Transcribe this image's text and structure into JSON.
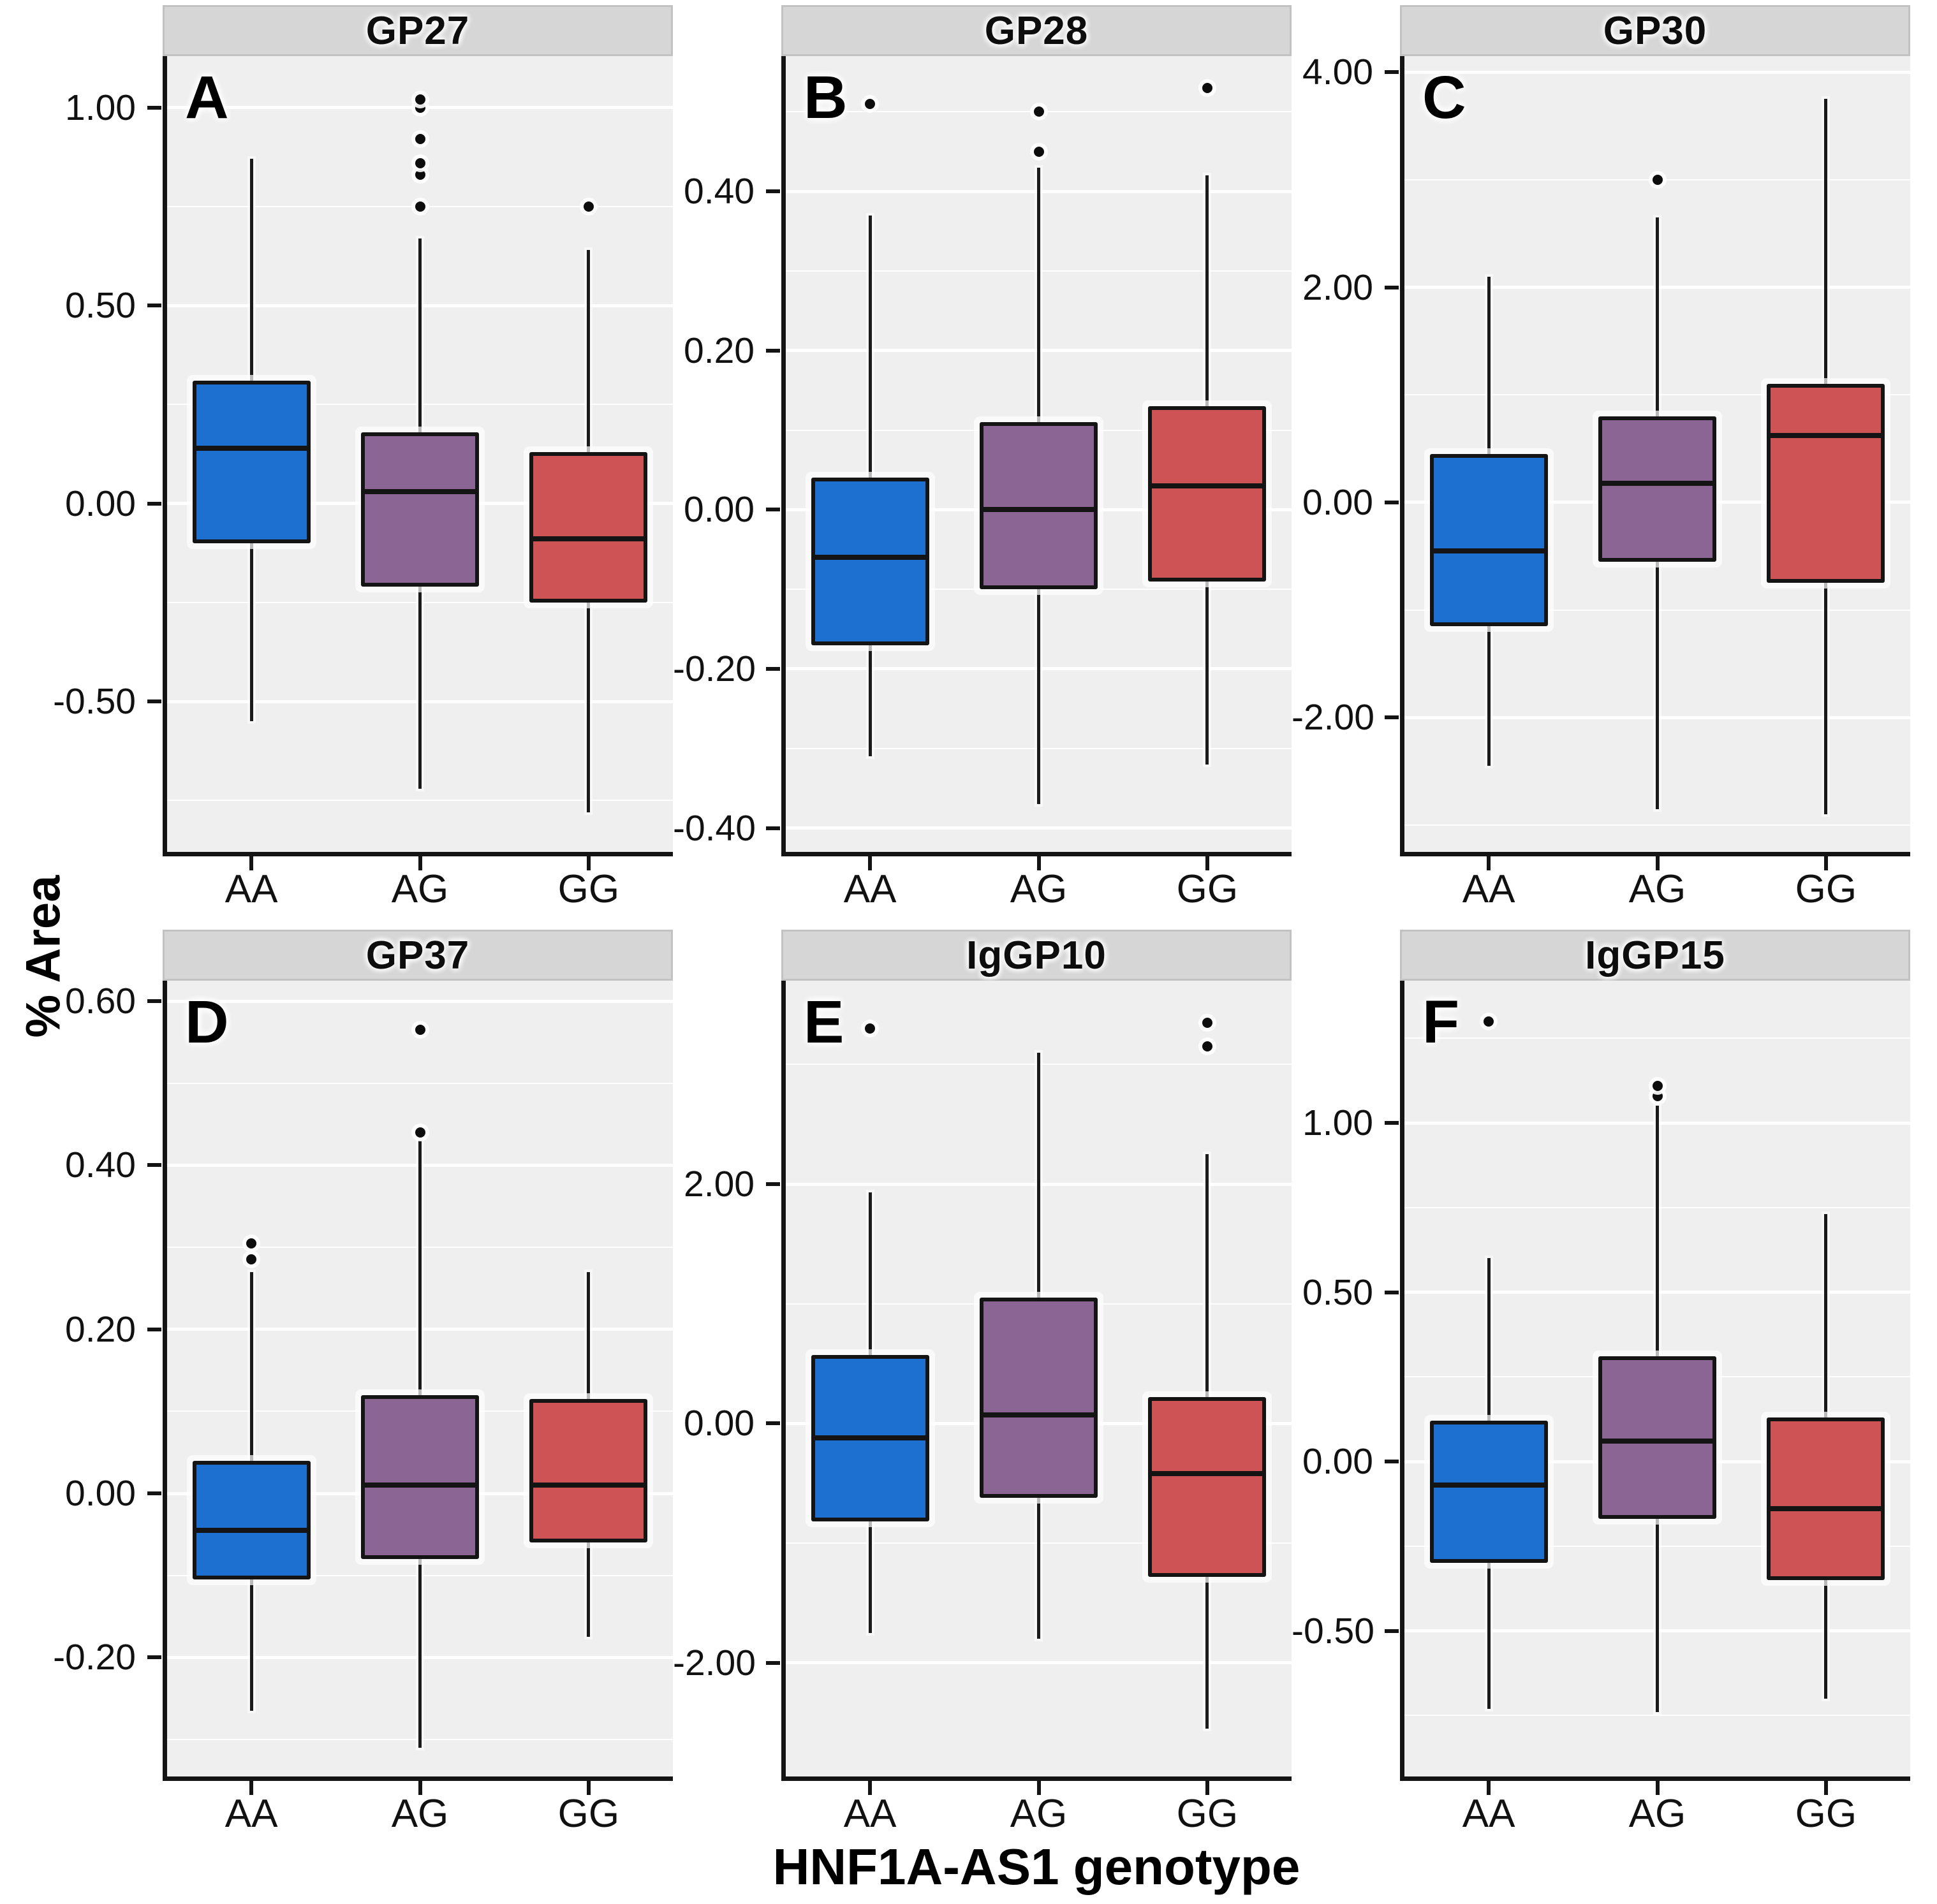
{
  "figure": {
    "y_axis_label": "% Area",
    "x_axis_label": "HNF1A-AS1 genotype",
    "categories": [
      "AA",
      "AG",
      "GG"
    ],
    "genotype_colors": {
      "AA": "#1e70d0",
      "AG": "#8b6694",
      "GG": "#ce5354"
    },
    "panel_background": "#efefef",
    "strip_background": "#d6d6d6",
    "gridline_color": "#ffffff"
  },
  "chart_data": [
    {
      "type": "boxplot",
      "panel_letter": "A",
      "title": "GP27",
      "ylim": [
        -0.88,
        1.13
      ],
      "yticks": [
        1.0,
        0.5,
        0.0,
        -0.5
      ],
      "ytick_labels": [
        "1.00",
        "0.50",
        "0.00",
        "-0.50"
      ],
      "categories": [
        "AA",
        "AG",
        "GG"
      ],
      "boxes": [
        {
          "category": "AA",
          "whisker_low": -0.55,
          "q1": -0.1,
          "median": 0.14,
          "q3": 0.31,
          "whisker_high": 0.87,
          "outliers": []
        },
        {
          "category": "AG",
          "whisker_low": -0.72,
          "q1": -0.21,
          "median": 0.03,
          "q3": 0.18,
          "whisker_high": 0.67,
          "outliers": [
            0.75,
            0.83,
            0.86,
            0.92,
            1.0,
            1.02
          ]
        },
        {
          "category": "GG",
          "whisker_low": -0.78,
          "q1": -0.25,
          "median": -0.09,
          "q3": 0.13,
          "whisker_high": 0.64,
          "outliers": [
            0.75
          ]
        }
      ]
    },
    {
      "type": "boxplot",
      "panel_letter": "B",
      "title": "GP28",
      "ylim": [
        -0.43,
        0.57
      ],
      "yticks": [
        0.4,
        0.2,
        0.0,
        -0.2,
        -0.4
      ],
      "ytick_labels": [
        "0.40",
        "0.20",
        "0.00",
        "-0.20",
        "-0.40"
      ],
      "categories": [
        "AA",
        "AG",
        "GG"
      ],
      "boxes": [
        {
          "category": "AA",
          "whisker_low": -0.31,
          "q1": -0.17,
          "median": -0.06,
          "q3": 0.04,
          "whisker_high": 0.37,
          "outliers": [
            0.51
          ]
        },
        {
          "category": "AG",
          "whisker_low": -0.37,
          "q1": -0.1,
          "median": 0.0,
          "q3": 0.11,
          "whisker_high": 0.43,
          "outliers": [
            0.45,
            0.5
          ]
        },
        {
          "category": "GG",
          "whisker_low": -0.32,
          "q1": -0.09,
          "median": 0.03,
          "q3": 0.13,
          "whisker_high": 0.42,
          "outliers": [
            0.53
          ]
        }
      ]
    },
    {
      "type": "boxplot",
      "panel_letter": "C",
      "title": "GP30",
      "ylim": [
        -3.25,
        4.15
      ],
      "yticks": [
        4.0,
        2.0,
        0.0,
        -2.0
      ],
      "ytick_labels": [
        "4.00",
        "2.00",
        "0.00",
        "-2.00"
      ],
      "categories": [
        "AA",
        "AG",
        "GG"
      ],
      "boxes": [
        {
          "category": "AA",
          "whisker_low": -2.45,
          "q1": -1.15,
          "median": -0.45,
          "q3": 0.45,
          "whisker_high": 2.1,
          "outliers": []
        },
        {
          "category": "AG",
          "whisker_low": -2.85,
          "q1": -0.55,
          "median": 0.18,
          "q3": 0.8,
          "whisker_high": 2.65,
          "outliers": [
            3.0
          ]
        },
        {
          "category": "GG",
          "whisker_low": -2.9,
          "q1": -0.75,
          "median": 0.62,
          "q3": 1.1,
          "whisker_high": 3.75,
          "outliers": []
        }
      ]
    },
    {
      "type": "boxplot",
      "panel_letter": "D",
      "title": "GP37",
      "ylim": [
        -0.345,
        0.625
      ],
      "yticks": [
        0.6,
        0.4,
        0.2,
        0.0,
        -0.2
      ],
      "ytick_labels": [
        "0.60",
        "0.40",
        "0.20",
        "0.00",
        "-0.20"
      ],
      "categories": [
        "AA",
        "AG",
        "GG"
      ],
      "boxes": [
        {
          "category": "AA",
          "whisker_low": -0.265,
          "q1": -0.105,
          "median": -0.045,
          "q3": 0.04,
          "whisker_high": 0.27,
          "outliers": [
            0.285,
            0.305
          ]
        },
        {
          "category": "AG",
          "whisker_low": -0.31,
          "q1": -0.08,
          "median": 0.01,
          "q3": 0.12,
          "whisker_high": 0.43,
          "outliers": [
            0.44,
            0.565
          ]
        },
        {
          "category": "GG",
          "whisker_low": -0.175,
          "q1": -0.06,
          "median": 0.01,
          "q3": 0.115,
          "whisker_high": 0.27,
          "outliers": []
        }
      ]
    },
    {
      "type": "boxplot",
      "panel_letter": "E",
      "title": "IgGP10",
      "ylim": [
        -2.95,
        3.7
      ],
      "yticks": [
        2.0,
        0.0,
        -2.0
      ],
      "ytick_labels": [
        "2.00",
        "0.00",
        "-2.00"
      ],
      "categories": [
        "AA",
        "AG",
        "GG"
      ],
      "boxes": [
        {
          "category": "AA",
          "whisker_low": -1.75,
          "q1": -0.82,
          "median": -0.12,
          "q3": 0.57,
          "whisker_high": 1.93,
          "outliers": [
            3.3
          ]
        },
        {
          "category": "AG",
          "whisker_low": -1.8,
          "q1": -0.62,
          "median": 0.07,
          "q3": 1.05,
          "whisker_high": 3.1,
          "outliers": []
        },
        {
          "category": "GG",
          "whisker_low": -2.55,
          "q1": -1.28,
          "median": -0.42,
          "q3": 0.22,
          "whisker_high": 2.25,
          "outliers": [
            3.15,
            3.35
          ]
        }
      ]
    },
    {
      "type": "boxplot",
      "panel_letter": "F",
      "title": "IgGP15",
      "ylim": [
        -0.93,
        1.42
      ],
      "yticks": [
        1.0,
        0.5,
        0.0,
        -0.5
      ],
      "ytick_labels": [
        "1.00",
        "0.50",
        "0.00",
        "-0.50"
      ],
      "categories": [
        "AA",
        "AG",
        "GG"
      ],
      "boxes": [
        {
          "category": "AA",
          "whisker_low": -0.73,
          "q1": -0.3,
          "median": -0.07,
          "q3": 0.12,
          "whisker_high": 0.6,
          "outliers": [
            1.3
          ]
        },
        {
          "category": "AG",
          "whisker_low": -0.74,
          "q1": -0.17,
          "median": 0.06,
          "q3": 0.31,
          "whisker_high": 1.05,
          "outliers": [
            1.08,
            1.11
          ]
        },
        {
          "category": "GG",
          "whisker_low": -0.7,
          "q1": -0.35,
          "median": -0.14,
          "q3": 0.13,
          "whisker_high": 0.73,
          "outliers": []
        }
      ]
    }
  ]
}
